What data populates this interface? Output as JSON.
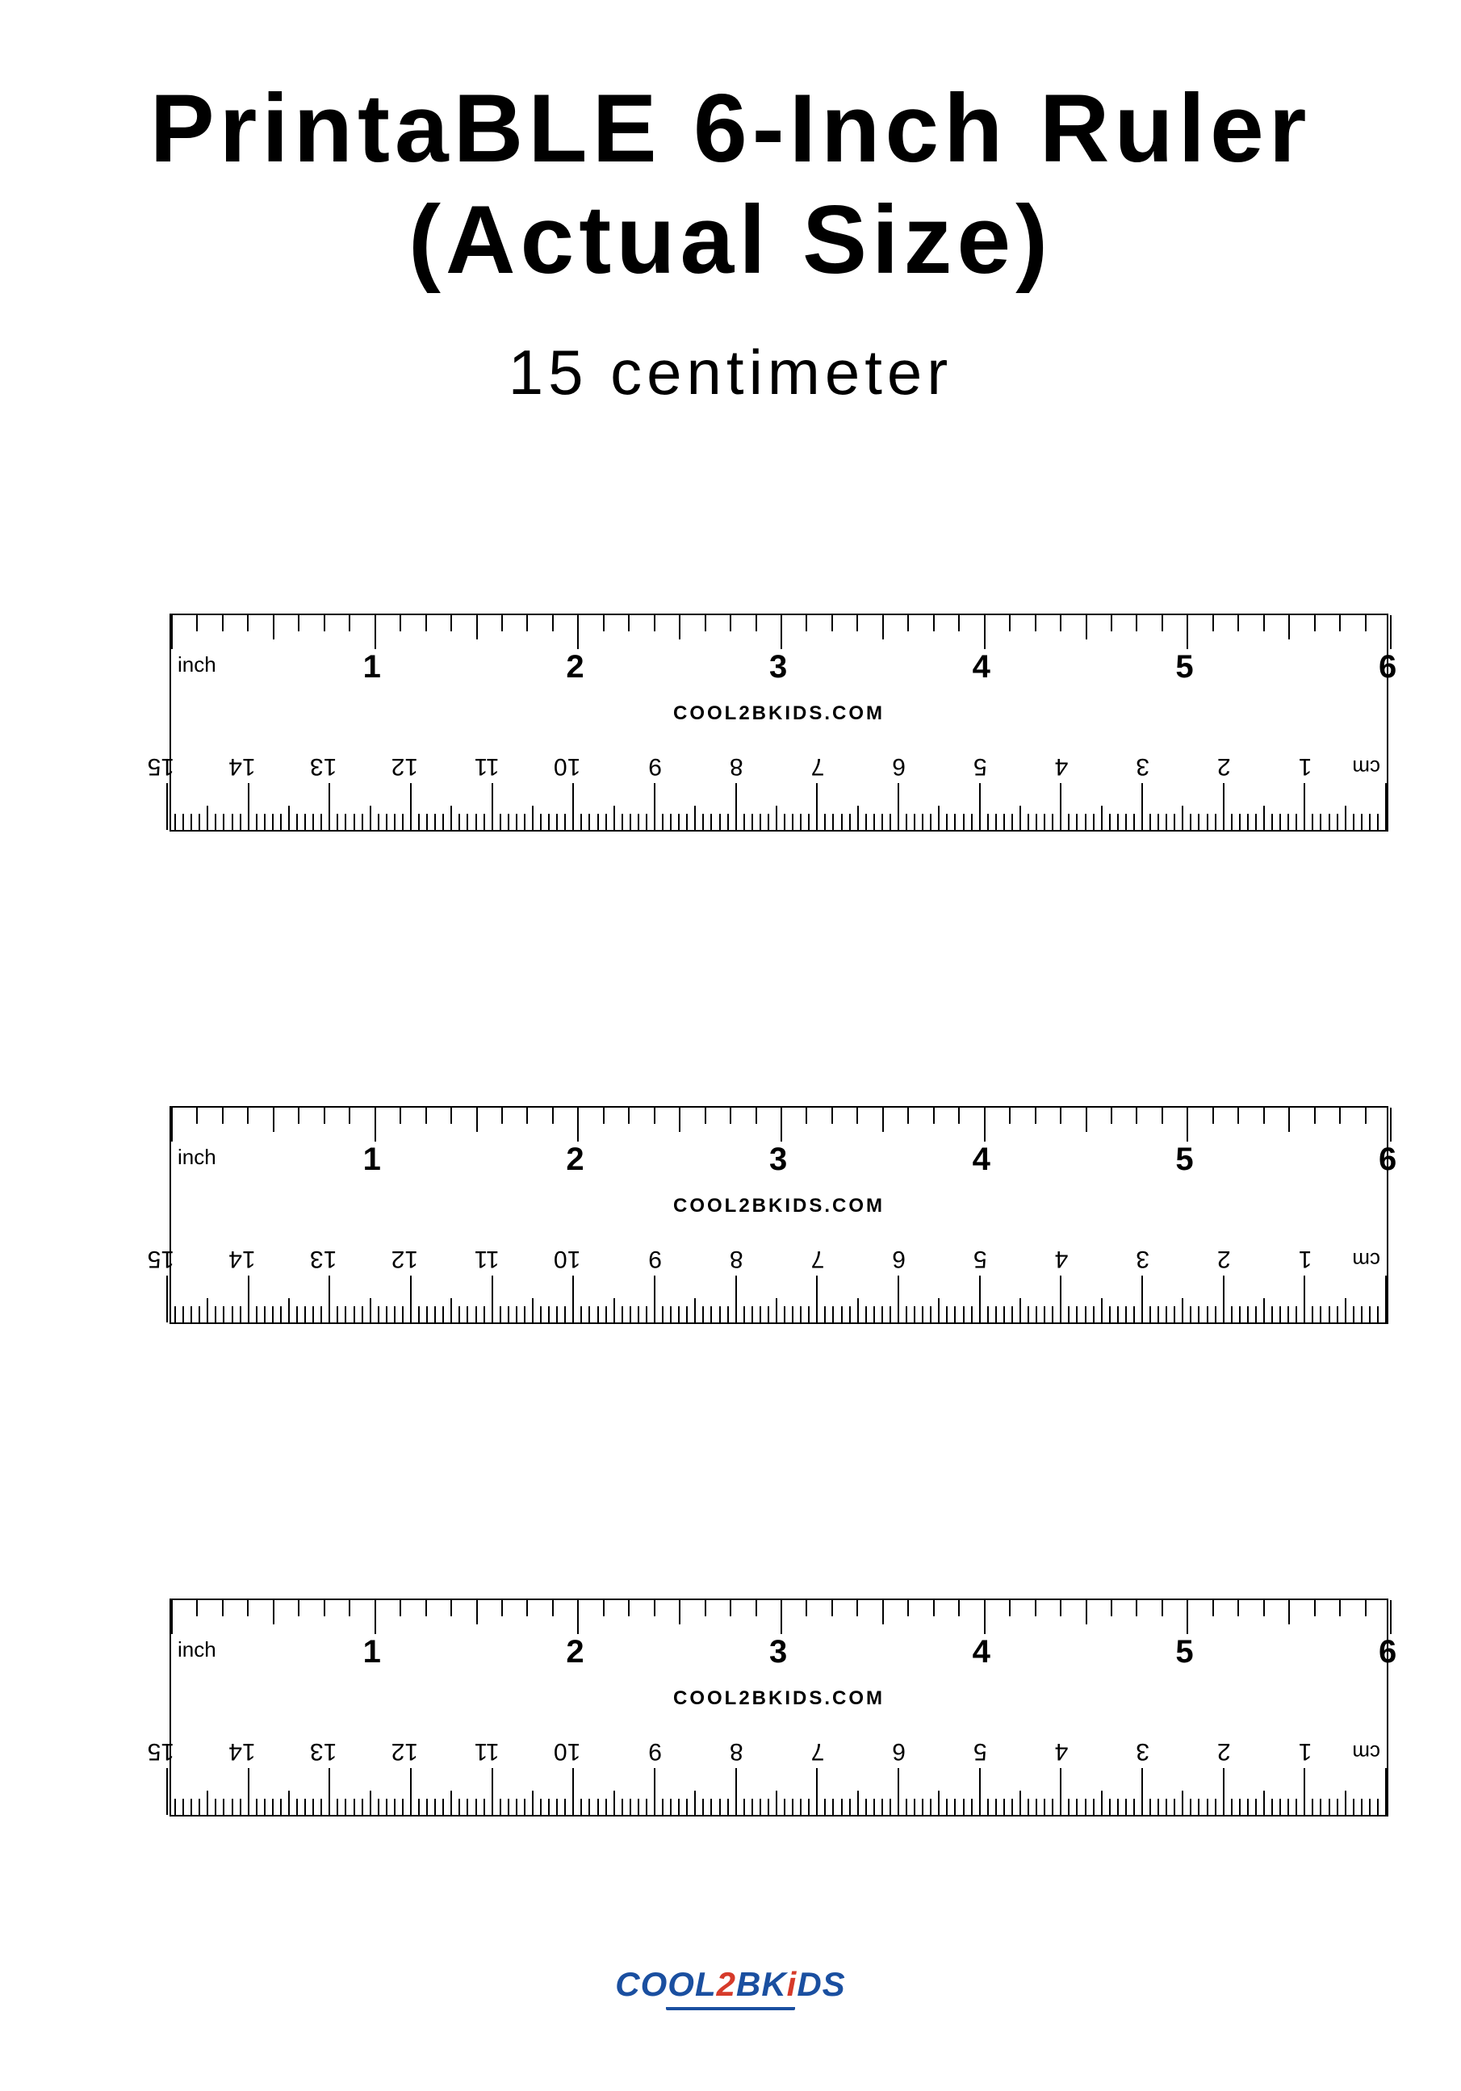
{
  "title_line1": "PrintaBLE 6-Inch Ruler",
  "title_line2": "(Actual Size)",
  "subtitle": "15 centimeter",
  "brand_text": "COOL2BKIDS.COM",
  "inch": {
    "unit_label": "inch",
    "labels": [
      "1",
      "2",
      "3",
      "4",
      "5",
      "6"
    ],
    "ticks_per_inch": 8,
    "total_inches": 6
  },
  "cm": {
    "unit_label": "cm",
    "labels": [
      "1",
      "2",
      "3",
      "4",
      "5",
      "6",
      "7",
      "8",
      "9",
      "10",
      "11",
      "12",
      "13",
      "14",
      "15"
    ],
    "ticks_per_cm": 10,
    "total_cm": 15
  },
  "ruler_count": 3,
  "colors": {
    "bg": "#ffffff",
    "fg": "#000000",
    "logo_blue": "#1a4fa0",
    "logo_red": "#d63a2a"
  },
  "logo": {
    "part1": "COOL",
    "part2": "2",
    "part3": "BK",
    "part4": "i",
    "part5": "DS"
  }
}
